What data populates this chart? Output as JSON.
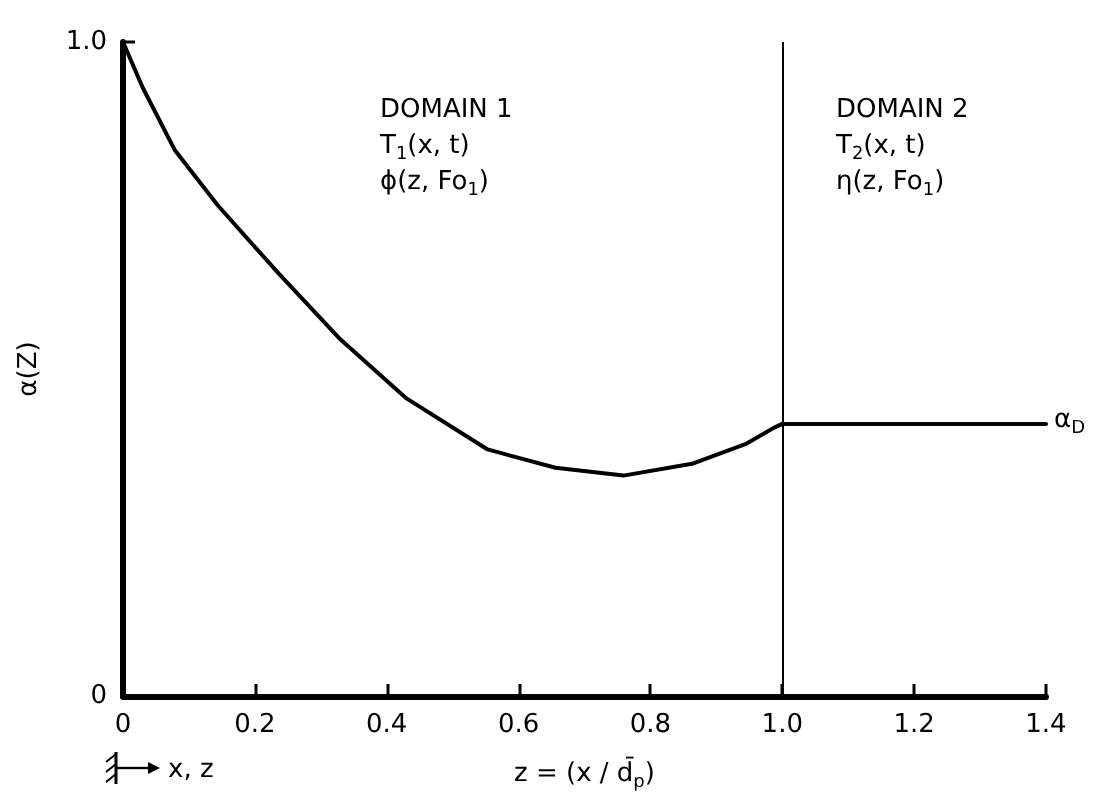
{
  "chart_data": {
    "type": "line",
    "xlabel": "z = (x / d̄$_{p}$)",
    "ylabel": "α(Z)",
    "x": [
      0,
      0.03,
      0.079,
      0.144,
      0.237,
      0.33,
      0.43,
      0.553,
      0.656,
      0.759,
      0.863,
      0.946,
      0.987,
      1.0,
      1.2,
      1.4
    ],
    "series": [
      {
        "color": "#000000",
        "values": [
          1.0,
          0.93,
          0.834,
          0.75,
          0.645,
          0.545,
          0.455,
          0.377,
          0.349,
          0.337,
          0.355,
          0.386,
          0.41,
          0.416,
          0.416,
          0.416
        ]
      }
    ],
    "xlim": [
      0,
      1.4
    ],
    "xticks": [
      0,
      0.2,
      0.4,
      0.6,
      0.8,
      {
        "value": 1.0,
        "label": "1.0"
      },
      1.2,
      1.4
    ],
    "ylim": [
      0,
      1.0
    ],
    "yticks": [
      0,
      {
        "value": 1.0,
        "label": "1.0"
      }
    ],
    "grid": false,
    "marker": "none",
    "line_style": "solid",
    "ref_lines": [
      {
        "axis": "x",
        "value": 1.0,
        "color": "#000000"
      }
    ],
    "annotations": [
      "DOMAIN 1\nT$_{1}$(x, t)\nϕ(z, Fo$_{1}$)",
      "DOMAIN 2\nT$_{2}$(x, t)\nη(z, Fo$_{1}$)",
      {
        "text": "α$_{D}$",
        "x": 1.4,
        "y": 0.416
      },
      "x, z"
    ]
  }
}
